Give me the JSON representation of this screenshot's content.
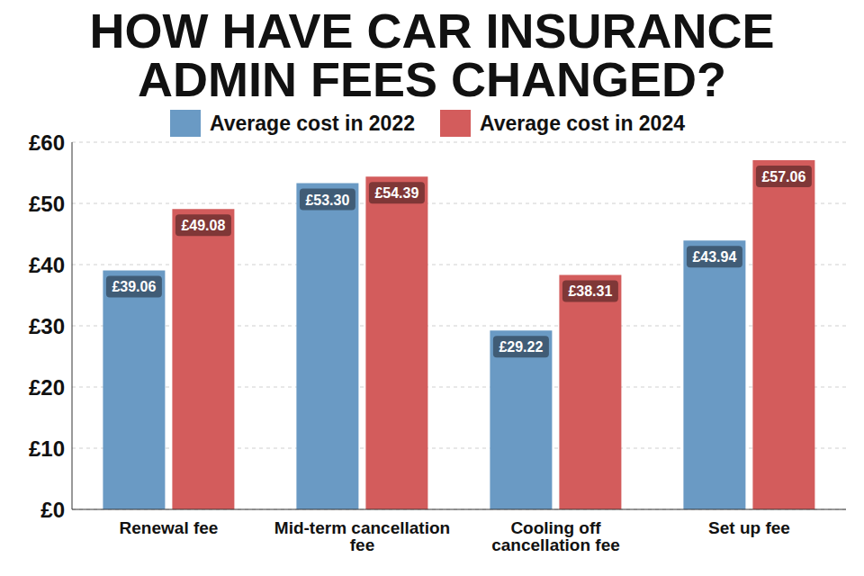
{
  "chart_data": {
    "type": "bar",
    "title": "HOW HAVE CAR INSURANCE ADMIN FEES CHANGED?",
    "categories": [
      "Renewal fee",
      "Mid-term cancellation fee",
      "Cooling off cancellation fee",
      "Set up fee"
    ],
    "series": [
      {
        "name": "Average cost in 2022",
        "color": "#6a9ac4",
        "values": [
          39.06,
          53.3,
          29.22,
          43.94
        ],
        "value_labels": [
          "£39.06",
          "£53.30",
          "£29.22",
          "£43.94"
        ]
      },
      {
        "name": "Average cost in 2024",
        "color": "#d35c5c",
        "values": [
          49.08,
          54.39,
          38.31,
          57.06
        ],
        "value_labels": [
          "£49.08",
          "£54.39",
          "£38.31",
          "£57.06"
        ]
      }
    ],
    "ylim": [
      0,
      60
    ],
    "yticks": [
      {
        "value": 0,
        "label": "£0"
      },
      {
        "value": 10,
        "label": "£10"
      },
      {
        "value": 20,
        "label": "£20"
      },
      {
        "value": 30,
        "label": "£30"
      },
      {
        "value": 40,
        "label": "£40"
      },
      {
        "value": 50,
        "label": "£50"
      },
      {
        "value": 60,
        "label": "£60"
      }
    ],
    "grid": true,
    "legend": "top",
    "data_labels": true
  }
}
